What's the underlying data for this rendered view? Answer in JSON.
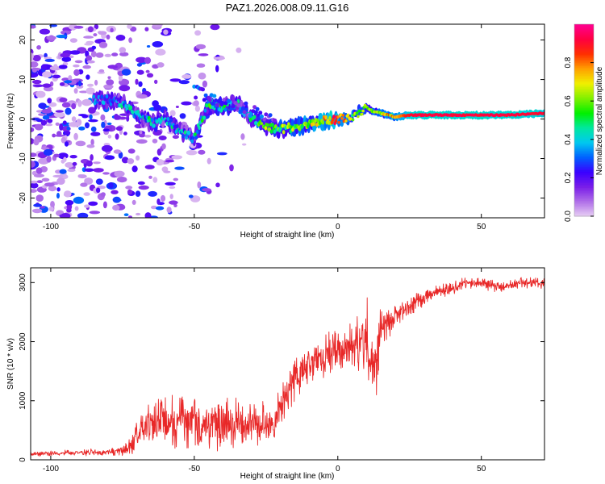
{
  "title": "PAZ1.2026.008.09.11.G16",
  "chart_data": [
    {
      "type": "heatmap",
      "title": "PAZ1.2026.008.09.11.G16",
      "xlabel": "Height of straight line (km)",
      "ylabel": "Frequency (Hz)",
      "xlim": [
        -107,
        72
      ],
      "ylim": [
        -25,
        24
      ],
      "xticks": [
        -100,
        -50,
        0,
        50
      ],
      "yticks": [
        -20,
        -10,
        0,
        10,
        20
      ],
      "colorbar": {
        "label": "Normalized spectral amplitude",
        "range": [
          0,
          1
        ],
        "ticks": [
          0.0,
          0.2,
          0.4,
          0.6,
          0.8
        ],
        "colormap": [
          "#e8d0f4",
          "#b070e8",
          "#7a1ee8",
          "#3a00ff",
          "#0060ff",
          "#00c8f0",
          "#00e8a0",
          "#00f000",
          "#80f000",
          "#f0f000",
          "#ffa000",
          "#ff3000",
          "#ff0040",
          "#ff0090"
        ]
      },
      "ridge": {
        "description": "dominant frequency track (Hz) vs height (km) with normalized amplitude",
        "x": [
          -82,
          -75,
          -70,
          -65,
          -60,
          -55,
          -50,
          -45,
          -40,
          -35,
          -30,
          -25,
          -20,
          -15,
          -10,
          -5,
          0,
          5,
          10,
          12,
          15,
          20,
          25,
          30,
          40,
          50,
          60,
          72
        ],
        "frequency": [
          5,
          4,
          1,
          -1,
          0,
          -3,
          -5,
          4,
          3,
          4,
          0,
          -2,
          -2.5,
          -2,
          -1.5,
          -0.5,
          0,
          0.5,
          3,
          2,
          1.5,
          0.5,
          1,
          1,
          1,
          1,
          1,
          1.5
        ],
        "amplitude": [
          0.3,
          0.35,
          0.35,
          0.4,
          0.35,
          0.35,
          0.4,
          0.45,
          0.45,
          0.4,
          0.4,
          0.55,
          0.55,
          0.6,
          0.65,
          0.7,
          0.85,
          0.6,
          0.55,
          0.6,
          0.7,
          0.75,
          0.9,
          0.92,
          0.92,
          0.92,
          0.92,
          0.9
        ]
      }
    },
    {
      "type": "line",
      "xlabel": "Height of straight line (km)",
      "ylabel": "SNR (10 * v/v)",
      "xlim": [
        -107,
        72
      ],
      "ylim": [
        0,
        3250
      ],
      "xticks": [
        -100,
        -50,
        0,
        50
      ],
      "yticks": [
        0,
        1000,
        2000,
        3000
      ],
      "color": "#e82828",
      "series": [
        {
          "name": "SNR",
          "x": [
            -107,
            -100,
            -90,
            -80,
            -75,
            -72,
            -70,
            -68,
            -65,
            -60,
            -55,
            -50,
            -45,
            -40,
            -35,
            -30,
            -25,
            -22,
            -20,
            -18,
            -15,
            -10,
            -5,
            0,
            5,
            10,
            12,
            15,
            20,
            25,
            30,
            35,
            40,
            45,
            50,
            55,
            60,
            65,
            72
          ],
          "base": [
            100,
            110,
            120,
            130,
            160,
            200,
            450,
            550,
            600,
            620,
            650,
            650,
            600,
            620,
            600,
            580,
            560,
            600,
            900,
            1150,
            1400,
            1650,
            1750,
            1850,
            1950,
            2000,
            1500,
            2200,
            2450,
            2600,
            2750,
            2850,
            2900,
            3000,
            3000,
            2950,
            2950,
            3000,
            3000
          ],
          "spread": [
            40,
            50,
            50,
            60,
            80,
            150,
            300,
            350,
            400,
            450,
            450,
            450,
            450,
            430,
            420,
            400,
            380,
            350,
            350,
            350,
            350,
            350,
            350,
            350,
            400,
            450,
            400,
            300,
            200,
            180,
            150,
            130,
            120,
            100,
            100,
            100,
            100,
            100,
            100
          ]
        }
      ]
    }
  ]
}
